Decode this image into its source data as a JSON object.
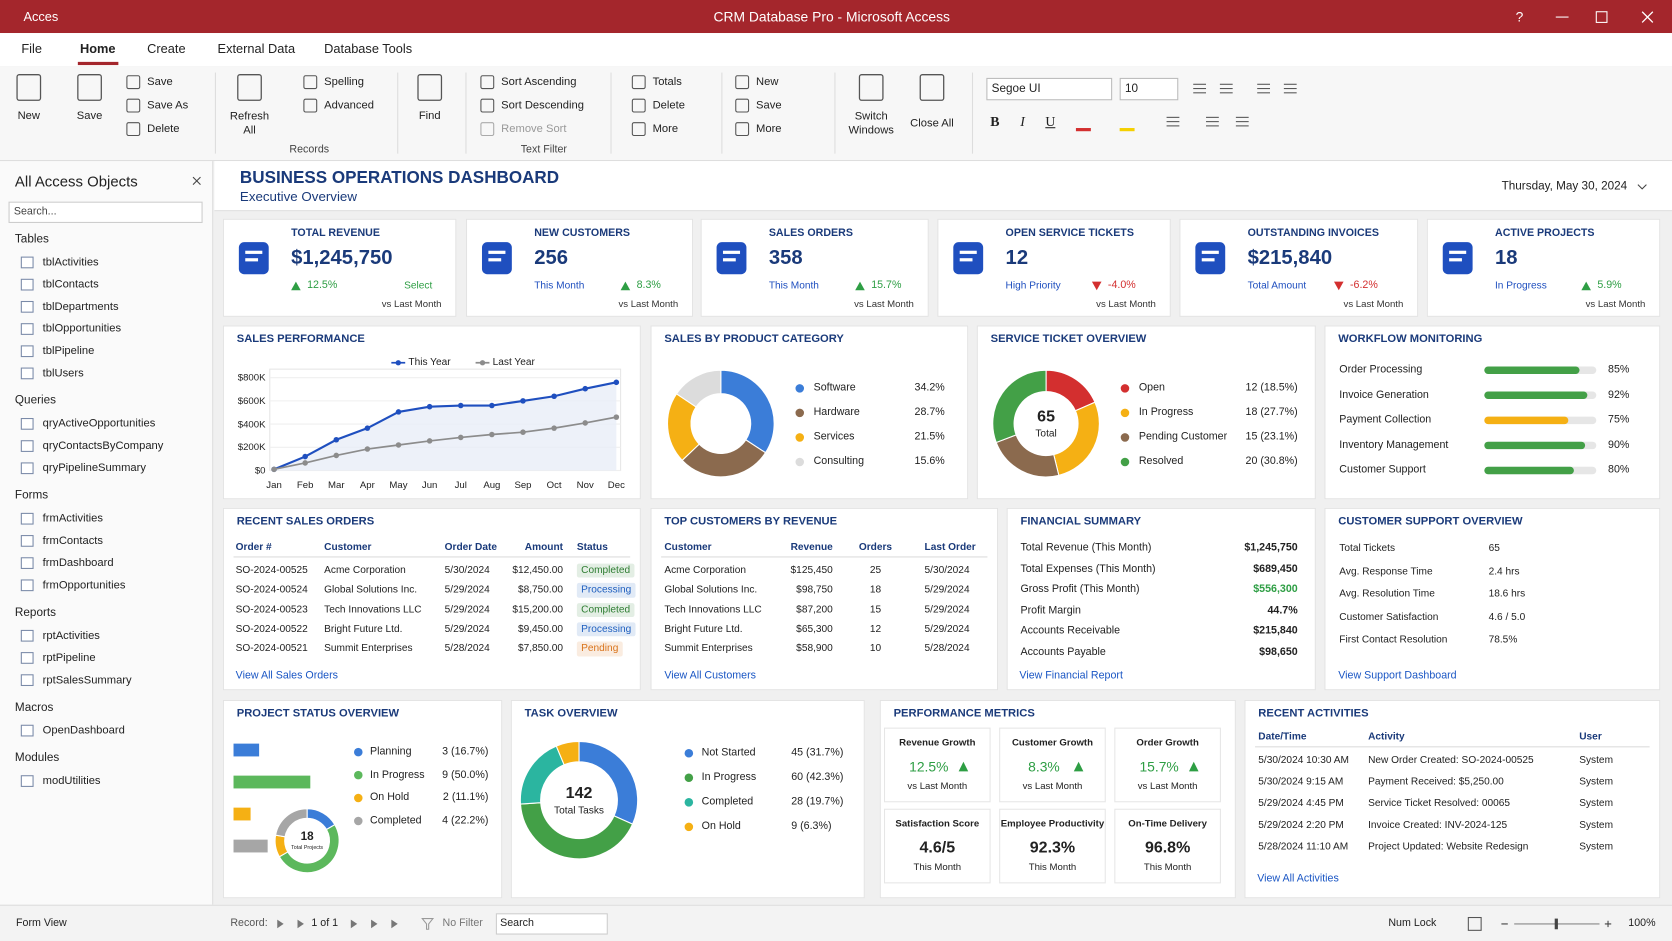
{
  "window": {
    "app_label": "Acces",
    "title": "CRM Database Pro - Microsoft Access",
    "help": "?"
  },
  "ribbon": {
    "tabs": [
      "File",
      "Home",
      "Create",
      "External Data",
      "Database Tools"
    ],
    "active_tab": "Home",
    "buttons": [
      "New",
      "Save",
      "Save",
      "Save As",
      "Delete",
      "Refresh All",
      "Spelling",
      "Advanced",
      "Find",
      "Sort Ascending",
      "Sort Descending",
      "Remove Sort",
      "Totals",
      "Delete",
      "More",
      "New",
      "Save",
      "More",
      "Switch Windows",
      "Close All"
    ],
    "group_labels": [
      "Records",
      "Text Filter"
    ],
    "font_name": "Segoe UI",
    "font_size": "10",
    "format_buttons": [
      "B",
      "I",
      "U"
    ]
  },
  "nav": {
    "title": "All Access Objects",
    "search": "Search...",
    "groups": [
      {
        "name": "Tables",
        "items": [
          "tblActivities",
          "tblContacts",
          "tblDepartments",
          "tblOpportunities",
          "tblPipeline",
          "tblUsers"
        ]
      },
      {
        "name": "Queries",
        "items": [
          "qryActiveOpportunities",
          "qryContactsByCompany",
          "qryPipelineSummary"
        ]
      },
      {
        "name": "Forms",
        "items": [
          "frmActivities",
          "frmContacts",
          "frmDashboard",
          "frmOpportunities"
        ]
      },
      {
        "name": "Reports",
        "items": [
          "rptActivities",
          "rptPipeline",
          "rptSalesSummary"
        ]
      },
      {
        "name": "Macros",
        "items": [
          "OpenDashboard"
        ]
      },
      {
        "name": "Modules",
        "items": [
          "modUtilities"
        ]
      }
    ]
  },
  "dashboard": {
    "title": "BUSINESS OPERATIONS DASHBOARD",
    "subtitle": "Executive Overview",
    "date": "Thursday, May 30, 2024",
    "kpis": [
      {
        "label": "TOTAL REVENUE",
        "value": "$1,245,750",
        "note": "Select",
        "change": "12.5%",
        "direction": "up",
        "compare": "vs Last Month"
      },
      {
        "label": "NEW CUSTOMERS",
        "value": "256",
        "note": "This Month",
        "change": "8.3%",
        "direction": "up",
        "compare": "vs Last Month"
      },
      {
        "label": "SALES ORDERS",
        "value": "358",
        "note": "This Month",
        "change": "15.7%",
        "direction": "up",
        "compare": "vs Last Month"
      },
      {
        "label": "OPEN SERVICE TICKETS",
        "value": "12",
        "note": "High Priority",
        "change": "-4.0%",
        "direction": "down",
        "compare": "vs Last Month"
      },
      {
        "label": "OUTSTANDING INVOICES",
        "value": "$215,840",
        "note": "Total Amount",
        "change": "-6.2%",
        "direction": "down",
        "compare": "vs Last Month"
      },
      {
        "label": "ACTIVE PROJECTS",
        "value": "18",
        "note": "In Progress",
        "change": "5.9%",
        "direction": "up",
        "compare": "vs Last Month"
      }
    ]
  },
  "chart_data": [
    {
      "type": "line",
      "title": "SALES PERFORMANCE",
      "categories": [
        "Jan",
        "Feb",
        "Mar",
        "Apr",
        "May",
        "Jun",
        "Jul",
        "Aug",
        "Sep",
        "Oct",
        "Nov",
        "Dec"
      ],
      "series": [
        {
          "name": "This Year",
          "color": "#1f4fbf",
          "values": [
            10000,
            120000,
            265000,
            365000,
            505000,
            550000,
            560000,
            560000,
            600000,
            640000,
            705000,
            760000
          ]
        },
        {
          "name": "Last Year",
          "color": "#8c8c8c",
          "values": [
            10000,
            65000,
            130000,
            185000,
            220000,
            255000,
            285000,
            310000,
            330000,
            365000,
            410000,
            460000
          ]
        }
      ],
      "ylim": [
        0,
        800000
      ],
      "yticks": [
        {
          "value": 0,
          "label": "$0"
        },
        {
          "value": 200000,
          "label": "$200K"
        },
        {
          "value": 400000,
          "label": "$400K"
        },
        {
          "value": 600000,
          "label": "$600K"
        },
        {
          "value": 800000,
          "label": "$800K"
        }
      ]
    },
    {
      "type": "donut",
      "title": "SALES BY PRODUCT CATEGORY",
      "categories": [
        "Software",
        "Hardware",
        "Services",
        "Consulting"
      ],
      "values": [
        34.2,
        28.7,
        21.5,
        15.6
      ],
      "value_labels": [
        "34.2%",
        "28.7%",
        "21.5%",
        "15.6%"
      ],
      "colors": [
        "#3b7dd8",
        "#8b6a4e",
        "#f5b014",
        "#dcdcdc"
      ]
    },
    {
      "type": "donut",
      "title": "SERVICE TICKET OVERVIEW",
      "categories": [
        "Open",
        "In Progress",
        "Pending Customer",
        "Resolved"
      ],
      "values": [
        12,
        18,
        15,
        20
      ],
      "value_labels": [
        "12 (18.5%)",
        "18 (27.7%)",
        "15 (23.1%)",
        "20 (30.8%)"
      ],
      "colors": [
        "#d32f2f",
        "#f5b014",
        "#8b6a4e",
        "#43a047"
      ],
      "center_value": "65",
      "center_label": "Total"
    },
    {
      "type": "progress",
      "title": "WORKFLOW MONITORING",
      "categories": [
        "Order Processing",
        "Invoice Generation",
        "Payment Collection",
        "Inventory Management",
        "Customer Support"
      ],
      "values": [
        85,
        92,
        75,
        90,
        80
      ],
      "value_labels": [
        "85%",
        "92%",
        "75%",
        "90%",
        "80%"
      ],
      "colors": [
        "#43a047",
        "#43a047",
        "#f5b014",
        "#43a047",
        "#43a047"
      ],
      "xlim": [
        0,
        100
      ]
    },
    {
      "type": "status_bars",
      "title": "PROJECT STATUS OVERVIEW",
      "categories": [
        "Planning",
        "In Progress",
        "On Hold",
        "Completed"
      ],
      "values": [
        3,
        9,
        2,
        4
      ],
      "value_labels": [
        "3 (16.7%)",
        "9 (50.0%)",
        "2 (11.1%)",
        "4 (22.2%)"
      ],
      "colors": [
        "#3b7dd8",
        "#5cb85c",
        "#f5b014",
        "#a6a6a6"
      ],
      "center_value": "18",
      "center_label": "Total Projects"
    },
    {
      "type": "donut",
      "title": "TASK OVERVIEW",
      "categories": [
        "Not Started",
        "In Progress",
        "Completed",
        "On Hold"
      ],
      "values": [
        45,
        60,
        28,
        9
      ],
      "value_labels": [
        "45 (31.7%)",
        "60 (42.3%)",
        "28 (19.7%)",
        "9 (6.3%)"
      ],
      "colors": [
        "#3b7dd8",
        "#43a047",
        "#2bb5a0",
        "#f5b014"
      ],
      "center_value": "142",
      "center_label": "Total Tasks"
    }
  ],
  "tables": {
    "recent_sales_orders": {
      "title": "RECENT SALES ORDERS",
      "columns": [
        "Order #",
        "Customer",
        "Order Date",
        "Amount",
        "Status"
      ],
      "rows": [
        [
          "SO-2024-00525",
          "Acme Corporation",
          "5/30/2024",
          "$12,450.00",
          "Completed"
        ],
        [
          "SO-2024-00524",
          "Global Solutions Inc.",
          "5/29/2024",
          "$8,750.00",
          "Processing"
        ],
        [
          "SO-2024-00523",
          "Tech Innovations LLC",
          "5/29/2024",
          "$15,200.00",
          "Completed"
        ],
        [
          "SO-2024-00522",
          "Bright Future Ltd.",
          "5/29/2024",
          "$9,450.00",
          "Processing"
        ],
        [
          "SO-2024-00521",
          "Summit Enterprises",
          "5/28/2024",
          "$7,850.00",
          "Pending"
        ]
      ],
      "status_colors": [
        "#2e7d32",
        "#1f5fbf",
        "#2e7d32",
        "#1f5fbf",
        "#d9731a"
      ],
      "link": "View All Sales Orders"
    },
    "top_customers": {
      "title": "TOP CUSTOMERS BY REVENUE",
      "columns": [
        "Customer",
        "Revenue",
        "Orders",
        "Last Order"
      ],
      "rows": [
        [
          "Acme Corporation",
          "$125,450",
          "25",
          "5/30/2024"
        ],
        [
          "Global Solutions Inc.",
          "$98,750",
          "18",
          "5/29/2024"
        ],
        [
          "Tech Innovations LLC",
          "$87,200",
          "15",
          "5/29/2024"
        ],
        [
          "Bright Future Ltd.",
          "$65,300",
          "12",
          "5/29/2024"
        ],
        [
          "Summit Enterprises",
          "$58,900",
          "10",
          "5/28/2024"
        ]
      ],
      "link": "View All Customers"
    },
    "financial_summary": {
      "title": "FINANCIAL SUMMARY",
      "rows": [
        [
          "Total Revenue (This Month)",
          "$1,245,750"
        ],
        [
          "Total Expenses (This Month)",
          "$689,450"
        ],
        [
          "Gross Profit (This Month)",
          "$556,300"
        ],
        [
          "Profit Margin",
          "44.7%"
        ],
        [
          "Accounts Receivable",
          "$215,840"
        ],
        [
          "Accounts Payable",
          "$98,650"
        ]
      ],
      "value_colors": [
        "#222222",
        "#222222",
        "#2e9e44",
        "#222222",
        "#222222",
        "#222222"
      ],
      "link": "View Financial Report"
    },
    "customer_support": {
      "title": "CUSTOMER SUPPORT OVERVIEW",
      "rows": [
        [
          "Total Tickets",
          "65"
        ],
        [
          "Avg. Response Time",
          "2.4 hrs"
        ],
        [
          "Avg. Resolution Time",
          "18.6 hrs"
        ],
        [
          "Customer Satisfaction",
          "4.6 / 5.0"
        ],
        [
          "First Contact Resolution",
          "78.5%"
        ]
      ],
      "link": "View Support Dashboard"
    },
    "recent_activities": {
      "title": "RECENT ACTIVITIES",
      "columns": [
        "Date/Time",
        "Activity",
        "User"
      ],
      "rows": [
        [
          "5/30/2024 10:30 AM",
          "New Order Created: SO-2024-00525",
          "System"
        ],
        [
          "5/30/2024 9:15 AM",
          "Payment Received: $5,250.00",
          "System"
        ],
        [
          "5/29/2024 4:45 PM",
          "Service Ticket Resolved: 00065",
          "System"
        ],
        [
          "5/29/2024 2:20 PM",
          "Invoice Created: INV-2024-125",
          "System"
        ],
        [
          "5/28/2024 11:10 AM",
          "Project Updated: Website Redesign",
          "System"
        ]
      ],
      "link": "View All Activities"
    }
  },
  "performance_metrics": {
    "title": "PERFORMANCE METRICS",
    "tiles": [
      {
        "label": "Revenue Growth",
        "value": "12.5%",
        "note": "vs Last Month",
        "trend": "up"
      },
      {
        "label": "Customer Growth",
        "value": "8.3%",
        "note": "vs Last Month",
        "trend": "up"
      },
      {
        "label": "Order Growth",
        "value": "15.7%",
        "note": "vs Last Month",
        "trend": "up"
      },
      {
        "label": "Satisfaction Score",
        "value": "4.6/5",
        "note": "This Month"
      },
      {
        "label": "Employee Productivity",
        "value": "92.3%",
        "note": "This Month"
      },
      {
        "label": "On-Time Delivery",
        "value": "96.8%",
        "note": "This Month"
      }
    ]
  },
  "status_bar": {
    "view": "Form View",
    "record_label": "Record:",
    "record": "1 of 1",
    "filter": "No Filter",
    "search": "Search",
    "num_lock": "Num Lock",
    "zoom": "100%"
  }
}
